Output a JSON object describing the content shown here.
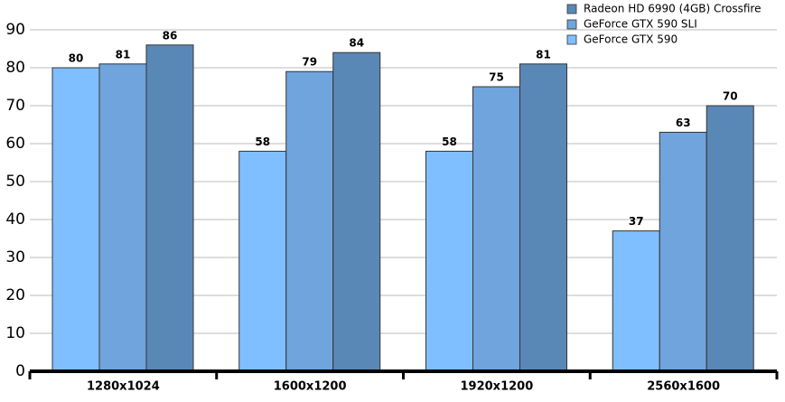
{
  "chart_data": {
    "type": "bar",
    "categories": [
      "1280x1024",
      "1600x1200",
      "1920x1200",
      "2560x1600"
    ],
    "series": [
      {
        "name": "GeForce GTX 590",
        "color": "#80bfff",
        "values": [
          80,
          58,
          58,
          37
        ]
      },
      {
        "name": "GeForce GTX 590 SLI",
        "color": "#70a4dc",
        "values": [
          81,
          79,
          75,
          63
        ]
      },
      {
        "name": "Radeon HD 6990 (4GB) Crossfire",
        "color": "#5a88b6",
        "values": [
          86,
          84,
          81,
          70
        ]
      }
    ],
    "ylim": [
      0,
      90
    ],
    "yticks": [
      0,
      10,
      20,
      30,
      40,
      50,
      60,
      70,
      80,
      90
    ],
    "grid": true,
    "legend": "top-right"
  }
}
